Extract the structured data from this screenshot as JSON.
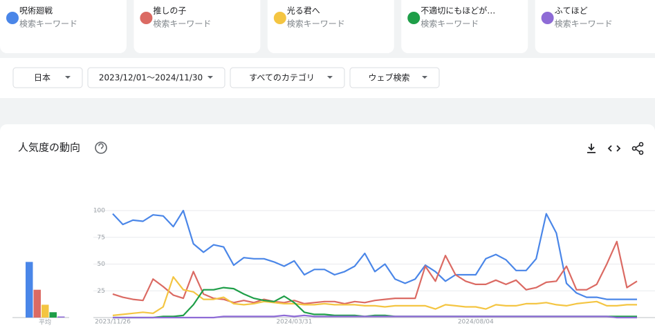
{
  "kind_label": "検索キーワード",
  "filters": [
    "日本",
    "2023/12/01～2024/11/30",
    "すべてのカテゴリ",
    "ウェブ検索"
  ],
  "section_title": "人気度の動向",
  "chart_data": [
    {
      "type": "line",
      "categories": [
        "2023/11/26",
        null,
        null,
        null,
        null,
        null,
        null,
        null,
        null,
        null,
        null,
        null,
        null,
        null,
        null,
        null,
        null,
        null,
        "2024/03/31",
        null,
        null,
        null,
        null,
        null,
        null,
        null,
        null,
        null,
        null,
        null,
        null,
        null,
        null,
        null,
        null,
        null,
        "2024/08/04",
        null,
        null,
        null,
        null,
        null,
        null,
        null,
        null,
        null,
        null,
        null,
        null,
        null,
        null,
        null,
        null
      ],
      "ylim": [
        0,
        100
      ],
      "yticks": [
        25,
        50,
        75,
        100
      ],
      "grid": true,
      "series": [
        {
          "name": "呪術廻戦",
          "color": "#4a86e8",
          "values": [
            97,
            87,
            91,
            90,
            96,
            95,
            85,
            100,
            69,
            61,
            68,
            66,
            49,
            56,
            55,
            55,
            52,
            48,
            53,
            40,
            45,
            45,
            40,
            43,
            48,
            60,
            43,
            50,
            36,
            32,
            36,
            49,
            43,
            34,
            40,
            40,
            40,
            55,
            59,
            54,
            44,
            44,
            55,
            97,
            79,
            32,
            23,
            19,
            19,
            17,
            17,
            17,
            17
          ]
        },
        {
          "name": "推しの子",
          "color": "#db6a63",
          "values": [
            22,
            19,
            17,
            16,
            36,
            29,
            21,
            18,
            43,
            22,
            18,
            17,
            14,
            16,
            14,
            17,
            15,
            14,
            16,
            13,
            14,
            15,
            15,
            13,
            15,
            14,
            16,
            17,
            18,
            18,
            18,
            48,
            34,
            58,
            40,
            34,
            31,
            31,
            35,
            31,
            35,
            26,
            28,
            33,
            34,
            48,
            26,
            26,
            31,
            50,
            71,
            28,
            34
          ]
        },
        {
          "name": "光る君へ",
          "color": "#f4c542",
          "values": [
            2,
            3,
            4,
            5,
            4,
            10,
            38,
            26,
            24,
            17,
            17,
            19,
            13,
            12,
            13,
            15,
            14,
            13,
            13,
            12,
            12,
            13,
            12,
            12,
            12,
            11,
            11,
            10,
            11,
            11,
            11,
            11,
            8,
            12,
            11,
            10,
            10,
            8,
            12,
            11,
            11,
            13,
            13,
            14,
            12,
            11,
            13,
            14,
            15,
            11,
            11,
            12,
            12
          ]
        },
        {
          "name": "不適切にもほどが…",
          "color": "#1e9e48",
          "values": [
            0,
            0,
            0,
            0,
            0,
            1,
            1,
            2,
            12,
            26,
            26,
            28,
            27,
            22,
            18,
            16,
            15,
            20,
            14,
            5,
            3,
            3,
            2,
            2,
            2,
            1,
            2,
            2,
            1,
            1,
            1,
            1,
            1,
            1,
            1,
            1,
            1,
            1,
            1,
            1,
            1,
            1,
            1,
            1,
            1,
            1,
            1,
            1,
            1,
            1,
            1,
            1,
            1
          ]
        },
        {
          "name": "ふてほど",
          "color": "#8e6bd6",
          "values": [
            0,
            0,
            0,
            0,
            0,
            0,
            0,
            0,
            0,
            0,
            0,
            1,
            1,
            1,
            1,
            1,
            1,
            2,
            1,
            2,
            1,
            1,
            1,
            1,
            1,
            1,
            1,
            1,
            1,
            1,
            1,
            1,
            1,
            1,
            1,
            1,
            1,
            1,
            1,
            1,
            1,
            1,
            1,
            1,
            1,
            1,
            1,
            1,
            1,
            1,
            0,
            0,
            0
          ]
        }
      ]
    },
    {
      "type": "bar",
      "categories": [
        "平均"
      ],
      "ylim": [
        0,
        100
      ],
      "series": [
        {
          "color": "#4a86e8",
          "values": [
            52
          ]
        },
        {
          "color": "#db6a63",
          "values": [
            26
          ]
        },
        {
          "color": "#f4c542",
          "values": [
            12
          ]
        },
        {
          "color": "#1e9e48",
          "values": [
            5
          ]
        },
        {
          "color": "#8e6bd6",
          "values": [
            1
          ]
        }
      ]
    }
  ]
}
